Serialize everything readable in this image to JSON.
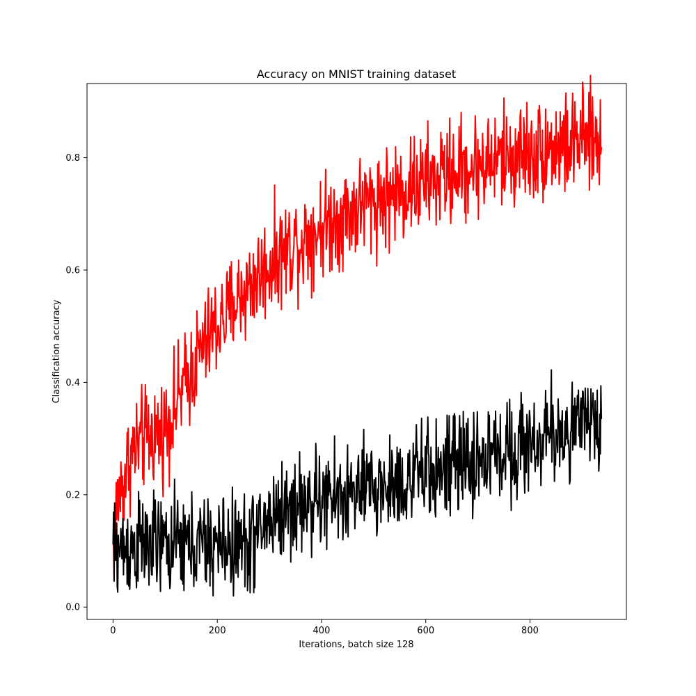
{
  "chart_data": {
    "type": "line",
    "title": "Accuracy on MNIST training dataset",
    "xlabel": "Iterations, batch size 128",
    "ylabel": "Classification accuracy",
    "xlim": [
      -50,
      985
    ],
    "ylim": [
      -0.022,
      0.932
    ],
    "x_ticks": [
      0,
      200,
      400,
      600,
      800
    ],
    "x_tick_labels": [
      "0",
      "200",
      "400",
      "600",
      "800"
    ],
    "y_ticks": [
      0.0,
      0.2,
      0.4,
      0.6,
      0.8
    ],
    "y_tick_labels": [
      "0.0",
      "0.2",
      "0.4",
      "0.6",
      "0.8"
    ],
    "grid": false,
    "series": [
      {
        "color": "#ff0000",
        "x": [
          0,
          5,
          10,
          20,
          30,
          40,
          50,
          60,
          70,
          80,
          90,
          100,
          110,
          120,
          130,
          140,
          150,
          160,
          170,
          180,
          190,
          200,
          210,
          220,
          230,
          240,
          250,
          260,
          270,
          280,
          290,
          300,
          310,
          320,
          330,
          340,
          350,
          360,
          370,
          380,
          390,
          400,
          410,
          420,
          430,
          440,
          450,
          460,
          470,
          480,
          490,
          500,
          510,
          520,
          530,
          540,
          550,
          560,
          570,
          580,
          590,
          600,
          610,
          620,
          630,
          640,
          650,
          660,
          670,
          680,
          690,
          700,
          710,
          720,
          730,
          740,
          750,
          760,
          770,
          780,
          790,
          800,
          810,
          820,
          830,
          840,
          850,
          860,
          870,
          880,
          890,
          900,
          910,
          920,
          930,
          937
        ],
        "y": [
          0.1,
          0.16,
          0.2,
          0.22,
          0.26,
          0.28,
          0.29,
          0.3,
          0.3,
          0.31,
          0.31,
          0.32,
          0.34,
          0.36,
          0.38,
          0.4,
          0.42,
          0.44,
          0.46,
          0.47,
          0.49,
          0.5,
          0.51,
          0.52,
          0.54,
          0.55,
          0.56,
          0.57,
          0.58,
          0.59,
          0.6,
          0.61,
          0.62,
          0.63,
          0.63,
          0.64,
          0.65,
          0.65,
          0.66,
          0.67,
          0.67,
          0.68,
          0.68,
          0.69,
          0.69,
          0.7,
          0.7,
          0.71,
          0.71,
          0.72,
          0.72,
          0.72,
          0.73,
          0.73,
          0.73,
          0.74,
          0.74,
          0.74,
          0.75,
          0.75,
          0.75,
          0.76,
          0.76,
          0.76,
          0.77,
          0.77,
          0.77,
          0.78,
          0.78,
          0.78,
          0.78,
          0.79,
          0.79,
          0.79,
          0.79,
          0.8,
          0.8,
          0.8,
          0.8,
          0.81,
          0.81,
          0.81,
          0.81,
          0.81,
          0.82,
          0.82,
          0.82,
          0.82,
          0.82,
          0.82,
          0.83,
          0.83,
          0.83,
          0.83,
          0.83,
          0.83
        ],
        "noise": 0.045
      },
      {
        "color": "#000000",
        "x": [
          0,
          50,
          100,
          150,
          200,
          250,
          280,
          300,
          350,
          400,
          450,
          500,
          550,
          600,
          650,
          700,
          750,
          800,
          850,
          900,
          937
        ],
        "y": [
          0.1,
          0.11,
          0.11,
          0.11,
          0.11,
          0.11,
          0.13,
          0.16,
          0.18,
          0.19,
          0.2,
          0.21,
          0.22,
          0.24,
          0.25,
          0.26,
          0.28,
          0.29,
          0.31,
          0.32,
          0.33
        ],
        "noise": 0.045
      }
    ]
  }
}
